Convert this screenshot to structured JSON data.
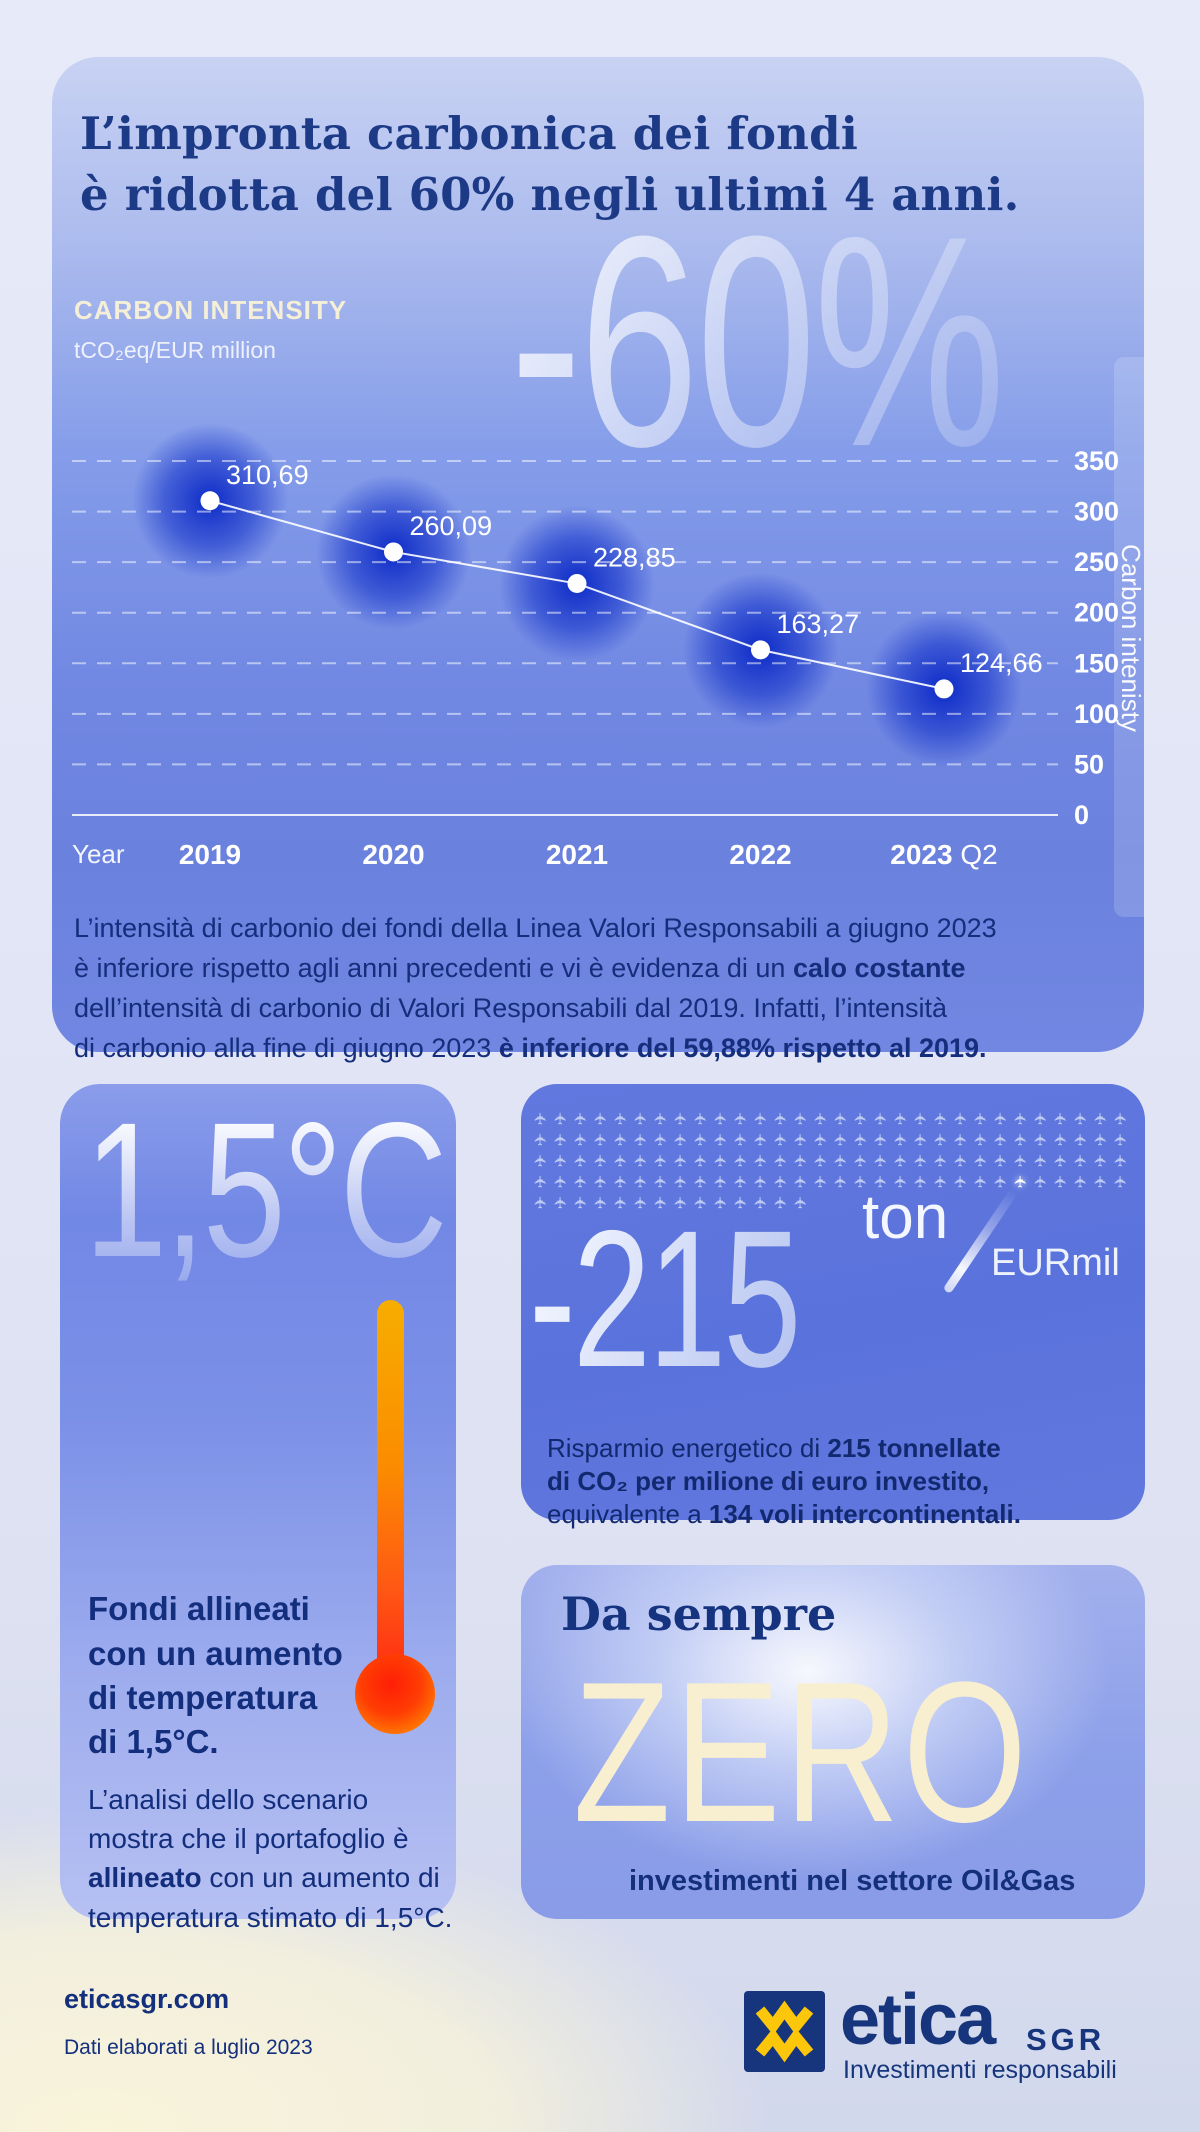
{
  "title": {
    "lines": "L’impronta carbonica dei fondi\nè ridotta del 60% negli ultimi 4 anni."
  },
  "chart": {
    "heading": "CARBON INTENSITY",
    "subheading": "tCO₂eq/EUR million",
    "watermark": "-60%",
    "x_axis_name": "Year",
    "y_axis_name": "Carbon intenisty"
  },
  "chart_data": {
    "type": "line",
    "title": "CARBON INTENSITY",
    "unit": "tCO2eq/EUR million",
    "categories": [
      "2019",
      "2020",
      "2021",
      "2022",
      "2023 Q2"
    ],
    "values": [
      310.69,
      260.09,
      228.85,
      163.27,
      124.66
    ],
    "value_labels": [
      "310,69",
      "260,09",
      "228,85",
      "163,27",
      "124,66"
    ],
    "xlabel": "Year",
    "ylabel": "Carbon intenisty",
    "ylim": [
      0,
      350
    ],
    "yticks": [
      350,
      300,
      250,
      200,
      150,
      100,
      50,
      0
    ],
    "grid": "dashed horizontal, solid zero baseline",
    "legend": "none",
    "annotation": "-60%"
  },
  "chart_paragraph": [
    [
      {
        "t": "L’intensità di carbonio dei fondi della Linea Valori Responsabili a giugno 2023"
      }
    ],
    [
      {
        "t": "è inferiore rispetto agli anni precedenti e vi è evidenza di un "
      },
      {
        "t": "calo costante",
        "b": true
      }
    ],
    [
      {
        "t": "dell’intensità di carbonio di Valori Responsabili dal 2019. Infatti, l’intensità"
      }
    ],
    [
      {
        "t": "di carbonio alla fine di giugno 2023 "
      },
      {
        "t": "è inferiore del 59,88% rispetto al 2019.",
        "b": true
      }
    ]
  ],
  "temperature_card": {
    "big": "1,5°C",
    "heading": "Fondi allineati\ncon un aumento\ndi temperatura\ndi 1,5°C.",
    "body": [
      [
        {
          "t": "L’analisi dello scenario"
        }
      ],
      [
        {
          "t": "mostra che il portafoglio è"
        }
      ],
      [
        {
          "t": "allineato",
          "b": true
        },
        {
          "t": " con un aumento di"
        }
      ],
      [
        {
          "t": "temperatura stimato di 1,5°C."
        }
      ]
    ]
  },
  "savings_card": {
    "value": "-215",
    "unit_top": "ton",
    "unit_bottom": "EURmil",
    "planes": {
      "total": 134,
      "per_row": 30,
      "highlight_index": 114,
      "icon": "airplane-icon",
      "glyph": "✈"
    },
    "caption": [
      [
        {
          "t": "Risparmio energetico di "
        },
        {
          "t": "215 tonnellate",
          "b": true
        }
      ],
      [
        {
          "t": "di CO₂ per milione di euro investito,",
          "b": true
        }
      ],
      [
        {
          "t": "equivalente a "
        },
        {
          "t": "134 voli intercontinentali.",
          "b": true
        }
      ]
    ]
  },
  "zero_card": {
    "kicker": "Da sempre",
    "big": "ZERO",
    "caption": "investimenti nel settore Oil&Gas"
  },
  "footer": {
    "site": "eticasgr.com",
    "note": "Dati elaborati a luglio 2023",
    "brand": "etica",
    "brand_suffix": "SGR",
    "tagline": "Investimenti responsabili"
  },
  "colors": {
    "navy": "#15307d",
    "cream": "#f5eed6",
    "glow_blue": "#0726c6",
    "point_white": "#ffffff",
    "yellow": "#fcc60a",
    "card_blue": "#5c73db",
    "thermo_orange": "#f7ad00",
    "thermo_red": "#ff2e12"
  }
}
